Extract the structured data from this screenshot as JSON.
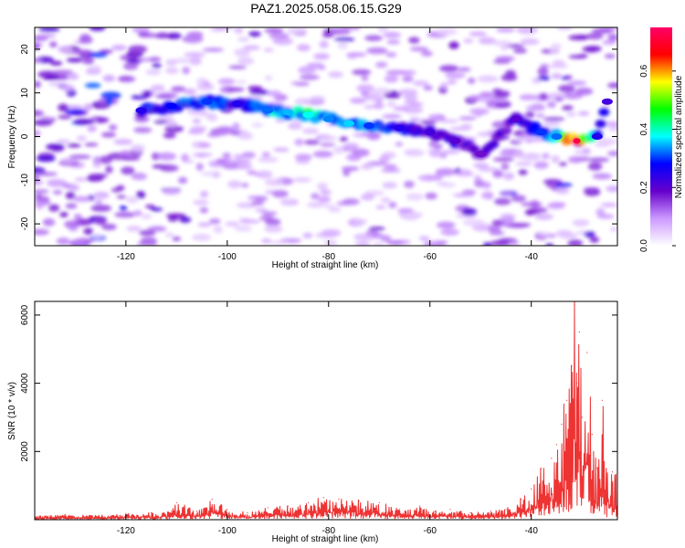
{
  "figure_title": "PAZ1.2025.058.06.15.G29",
  "chart_data": [
    {
      "type": "heatmap",
      "xlabel": "Height of straight line (km)",
      "ylabel": "Frequency (Hz)",
      "xlim": [
        -138,
        -23
      ],
      "ylim": [
        -25,
        25
      ],
      "xticks": [
        -120,
        -100,
        -80,
        -60,
        -40
      ],
      "yticks": [
        -20,
        -10,
        0,
        10,
        20
      ],
      "colorbar": {
        "label": "Normalized spectral amplitude",
        "range": [
          0.0,
          0.75
        ],
        "ticks": [
          0.0,
          0.2,
          0.4,
          0.6
        ],
        "colors": [
          "#ffffff",
          "#cc99ff",
          "#6600cc",
          "#0000ff",
          "#00ffff",
          "#00ff00",
          "#ffff00",
          "#ff0000",
          "#ff0066"
        ]
      },
      "ridge": [
        {
          "x": -117,
          "y": 6,
          "v": 0.25
        },
        {
          "x": -111,
          "y": 7,
          "v": 0.28
        },
        {
          "x": -104,
          "y": 8,
          "v": 0.3
        },
        {
          "x": -98,
          "y": 7.5,
          "v": 0.25
        },
        {
          "x": -92,
          "y": 6,
          "v": 0.32
        },
        {
          "x": -88,
          "y": 5.5,
          "v": 0.35
        },
        {
          "x": -84,
          "y": 5,
          "v": 0.38
        },
        {
          "x": -80,
          "y": 4,
          "v": 0.33
        },
        {
          "x": -76,
          "y": 3,
          "v": 0.36
        },
        {
          "x": -72,
          "y": 2.5,
          "v": 0.3
        },
        {
          "x": -66,
          "y": 2,
          "v": 0.25
        },
        {
          "x": -60,
          "y": 1,
          "v": 0.22
        },
        {
          "x": -55,
          "y": -1,
          "v": 0.2
        },
        {
          "x": -50,
          "y": -4,
          "v": 0.18
        },
        {
          "x": -43,
          "y": 4,
          "v": 0.2
        },
        {
          "x": -38,
          "y": 1,
          "v": 0.3
        },
        {
          "x": -35,
          "y": 0,
          "v": 0.32
        },
        {
          "x": -31,
          "y": -1,
          "v": 0.72
        },
        {
          "x": -27,
          "y": 0,
          "v": 0.25
        },
        {
          "x": -25,
          "y": 8,
          "v": 0.22
        }
      ]
    },
    {
      "type": "line",
      "xlabel": "Height of straight line (km)",
      "ylabel": "SNR (10 * v/v)",
      "xlim": [
        -138,
        -23
      ],
      "ylim": [
        0,
        6400
      ],
      "xticks": [
        -120,
        -100,
        -80,
        -60,
        -40
      ],
      "yticks": [
        2000,
        4000,
        6000
      ],
      "color": "#ee3333",
      "series": [
        {
          "x": [
            -138,
            -132,
            -126,
            -120,
            -115,
            -111,
            -110,
            -106,
            -103,
            -100,
            -96,
            -92,
            -88,
            -84,
            -81,
            -78,
            -74,
            -70,
            -66,
            -62,
            -59,
            -56,
            -52,
            -48,
            -45,
            -42,
            -40,
            -38,
            -36,
            -35,
            -34,
            -33,
            -32,
            -31.5,
            -31,
            -30.5,
            -30,
            -29,
            -28,
            -27,
            -26,
            -25,
            -24,
            -23
          ],
          "y": [
            100,
            150,
            120,
            180,
            200,
            250,
            500,
            250,
            600,
            300,
            200,
            350,
            400,
            500,
            650,
            600,
            550,
            500,
            300,
            400,
            250,
            300,
            200,
            250,
            300,
            600,
            900,
            1500,
            1800,
            2200,
            2800,
            3500,
            4500,
            6300,
            4000,
            5500,
            3000,
            4900,
            2500,
            1500,
            3500,
            1300,
            1400,
            1200
          ]
        }
      ]
    }
  ]
}
